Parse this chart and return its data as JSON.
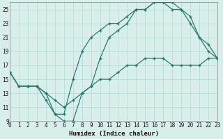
{
  "xlabel": "Humidex (Indice chaleur)",
  "xlim": [
    0,
    23
  ],
  "ylim": [
    9,
    26
  ],
  "yticks": [
    9,
    11,
    13,
    15,
    17,
    19,
    21,
    23,
    25
  ],
  "xticks": [
    0,
    1,
    2,
    3,
    4,
    5,
    6,
    7,
    8,
    9,
    10,
    11,
    12,
    13,
    14,
    15,
    16,
    17,
    18,
    19,
    20,
    21,
    22,
    23
  ],
  "background_color": "#d8eeeb",
  "line_color": "#2a7a70",
  "grid_color": "#b8dbd8",
  "line1_x": [
    0,
    1,
    2,
    3,
    4,
    5,
    6,
    7,
    8,
    9,
    10,
    11,
    12,
    13,
    14,
    15,
    16,
    17,
    18,
    19,
    20,
    21,
    22,
    23
  ],
  "line1_y": [
    16,
    14,
    14,
    14,
    13,
    10,
    10,
    15,
    19,
    21,
    22,
    23,
    23,
    24,
    25,
    25,
    26,
    26,
    25,
    25,
    24,
    21,
    20,
    18
  ],
  "line2_x": [
    0,
    1,
    2,
    3,
    4,
    5,
    6,
    7,
    8,
    9,
    10,
    11,
    12,
    13,
    14,
    15,
    16,
    17,
    18,
    19,
    20,
    21,
    22,
    23
  ],
  "line2_y": [
    16,
    14,
    14,
    14,
    12,
    10,
    9,
    9,
    13,
    14,
    18,
    21,
    22,
    23,
    25,
    25,
    26,
    26,
    26,
    25,
    23,
    21,
    19,
    18
  ],
  "line3_x": [
    0,
    1,
    2,
    3,
    4,
    5,
    6,
    7,
    8,
    9,
    10,
    11,
    12,
    13,
    14,
    15,
    16,
    17,
    18,
    19,
    20,
    21,
    22,
    23
  ],
  "line3_y": [
    16,
    14,
    14,
    14,
    13,
    12,
    11,
    12,
    13,
    14,
    15,
    15,
    16,
    17,
    17,
    18,
    18,
    18,
    17,
    17,
    17,
    17,
    18,
    18
  ]
}
